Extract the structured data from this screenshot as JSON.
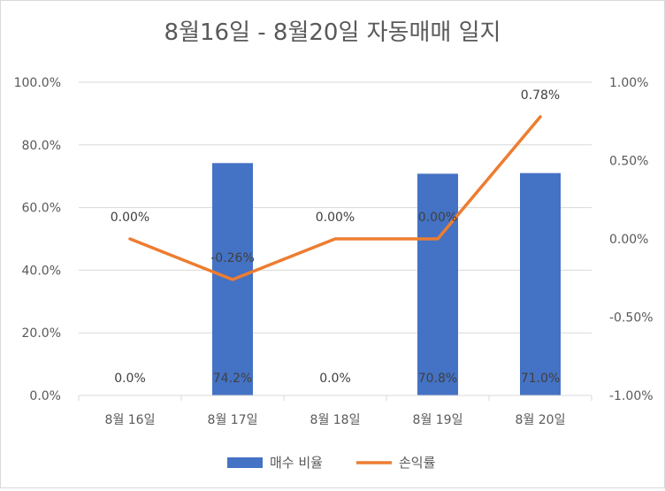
{
  "chart_data": {
    "type": "bar+line",
    "title": "8월16일 - 8월20일 자동매매 일지",
    "categories": [
      "8월 16일",
      "8월 17일",
      "8월 18일",
      "8월 19일",
      "8월 20일"
    ],
    "series": [
      {
        "name": "매수 비율",
        "type": "bar",
        "axis": "left",
        "color": "#4472C4",
        "values": [
          0.0,
          74.2,
          0.0,
          70.8,
          71.0
        ],
        "labels": [
          "0.0%",
          "74.2%",
          "0.0%",
          "70.8%",
          "71.0%"
        ]
      },
      {
        "name": "손익률",
        "type": "line",
        "axis": "right",
        "color": "#ED7D31",
        "values": [
          0.0,
          -0.26,
          0.0,
          0.0,
          0.78
        ],
        "labels": [
          "0.00%",
          "-0.26%",
          "0.00%",
          "0.00%",
          "0.78%"
        ]
      }
    ],
    "y_left": {
      "min": 0,
      "max": 100,
      "ticks": [
        "0.0%",
        "20.0%",
        "40.0%",
        "60.0%",
        "80.0%",
        "100.0%"
      ]
    },
    "y_right": {
      "min": -1.0,
      "max": 1.0,
      "ticks": [
        "-1.00%",
        "-0.50%",
        "0.00%",
        "0.50%",
        "1.00%"
      ]
    },
    "gridlines": true,
    "legend_position": "bottom"
  }
}
